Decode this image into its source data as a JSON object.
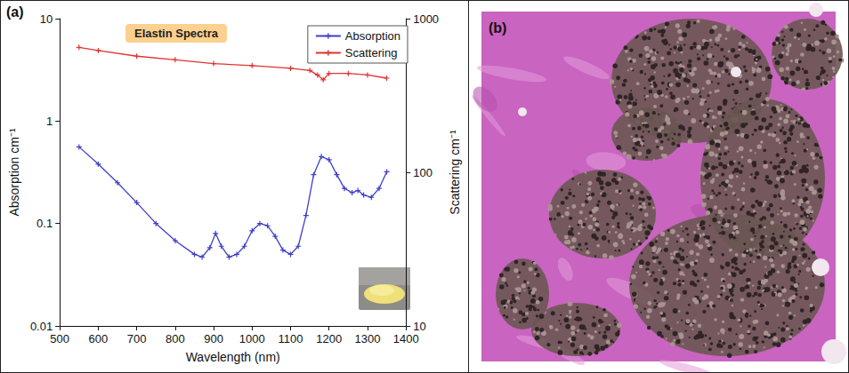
{
  "chart_data": {
    "type": "line",
    "panel_label": "(a)",
    "title": "Elastin Spectra",
    "x_label": "Wavelength (nm)",
    "y_label": "Absorption cm⁻¹",
    "y2_label": "Scattering cm⁻¹",
    "xlim": [
      500,
      1400
    ],
    "xticks": [
      500,
      600,
      700,
      800,
      900,
      1000,
      1100,
      1200,
      1300,
      1400
    ],
    "ylim": [
      0.01,
      10
    ],
    "yticks": [
      0.01,
      0.1,
      1,
      10
    ],
    "y2lim": [
      10,
      1000
    ],
    "y2ticks": [
      10,
      100,
      1000
    ],
    "log": "y",
    "grid": false,
    "legend": "upper right",
    "series": [
      {
        "name": "Absorption",
        "color": "#3f3fc8",
        "marker": "plus",
        "line_style": "solid",
        "x": [
          550,
          600,
          650,
          700,
          750,
          800,
          850,
          870,
          890,
          905,
          920,
          940,
          960,
          980,
          1000,
          1020,
          1040,
          1060,
          1080,
          1100,
          1120,
          1140,
          1160,
          1180,
          1200,
          1220,
          1240,
          1260,
          1275,
          1290,
          1310,
          1330,
          1350
        ],
        "values": [
          0.56,
          0.38,
          0.25,
          0.16,
          0.1,
          0.068,
          0.05,
          0.047,
          0.058,
          0.08,
          0.06,
          0.047,
          0.05,
          0.06,
          0.085,
          0.1,
          0.095,
          0.075,
          0.055,
          0.05,
          0.06,
          0.12,
          0.3,
          0.45,
          0.42,
          0.3,
          0.22,
          0.2,
          0.21,
          0.19,
          0.18,
          0.22,
          0.32
        ]
      },
      {
        "name": "Scattering",
        "color": "#e03232",
        "marker": "plus",
        "line_style": "solid",
        "axis": "y2",
        "x": [
          550,
          600,
          700,
          800,
          900,
          1000,
          1100,
          1150,
          1170,
          1185,
          1200,
          1250,
          1300,
          1350
        ],
        "values": [
          650,
          620,
          570,
          540,
          510,
          495,
          475,
          460,
          430,
          400,
          440,
          440,
          430,
          410
        ]
      }
    ]
  },
  "image_panel": {
    "label": "(b)"
  }
}
